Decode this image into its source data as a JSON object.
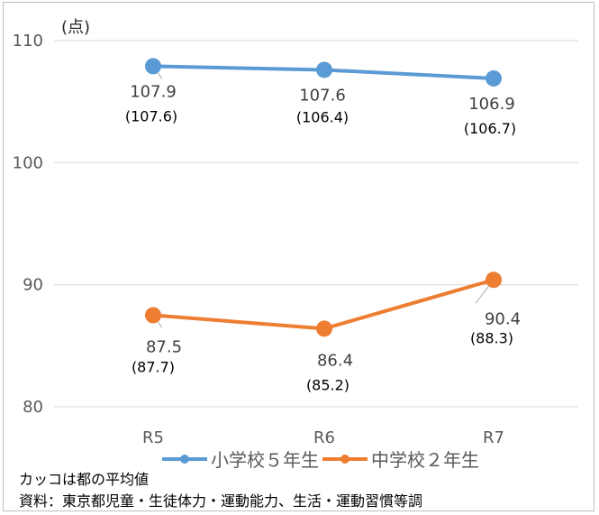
{
  "chart_data": {
    "type": "line",
    "title": "",
    "unit_label": "(点)",
    "categories": [
      "R5",
      "R6",
      "R7"
    ],
    "ylim": [
      80,
      110
    ],
    "yticks": [
      80,
      90,
      100,
      110
    ],
    "grid": true,
    "legend_position": "bottom",
    "series": [
      {
        "name": "小学校５年生",
        "color": "#5b9bd5",
        "values": [
          107.9,
          107.6,
          106.9
        ],
        "labels": [
          "107.9",
          "107.6",
          "106.9"
        ],
        "sub_labels": [
          "(107.6)",
          "(106.4)",
          "(106.7)"
        ]
      },
      {
        "name": "中学校２年生",
        "color": "#ed7d31",
        "values": [
          87.5,
          86.4,
          90.4
        ],
        "labels": [
          "87.5",
          "86.4",
          "90.4"
        ],
        "sub_labels": [
          "(87.7)",
          "(85.2)",
          "(88.3)"
        ]
      }
    ]
  },
  "notes": {
    "line1": "カッコは都の平均値",
    "line2": "資料：東京都児童・生徒体力・運動能力、生活・運動習慣等調"
  }
}
